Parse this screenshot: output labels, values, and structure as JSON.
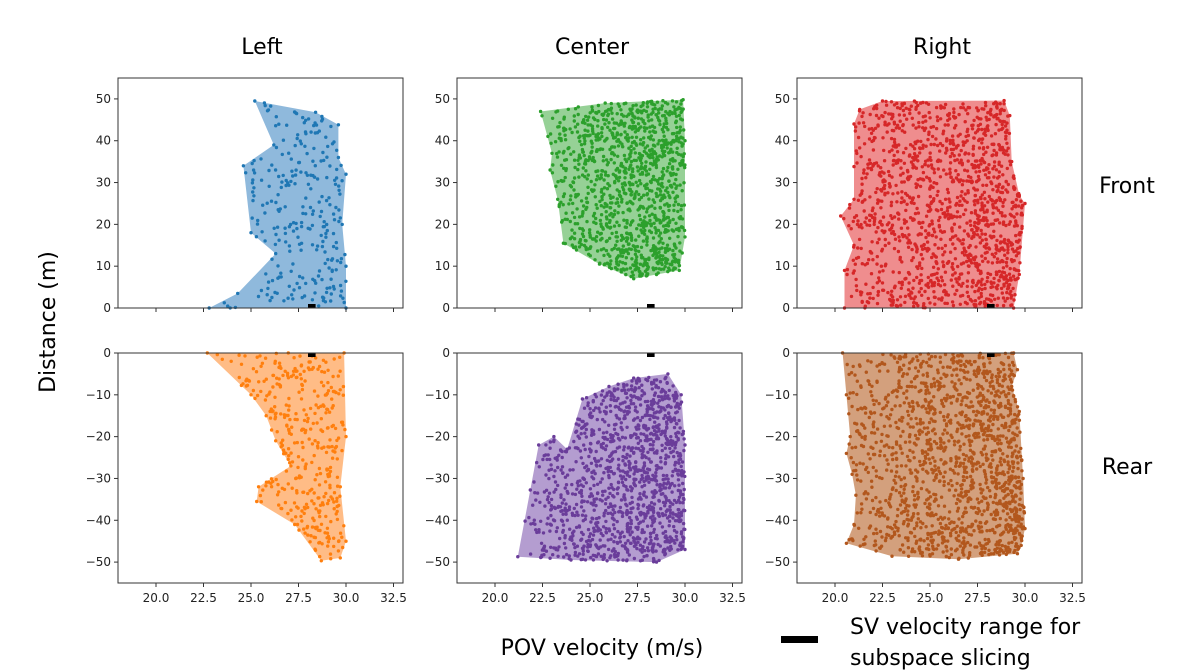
{
  "figure": {
    "ylabel": "Distance (m)",
    "xlabel": "POV velocity (m/s)",
    "legend_label_line1": "SV velocity range for",
    "legend_label_line2": "subspace slicing",
    "legend_color": "#000000"
  },
  "chart_data": {
    "type": "scatter",
    "columns": [
      "Left",
      "Center",
      "Right"
    ],
    "rows": [
      "Front",
      "Rear"
    ],
    "xlim": [
      18.0,
      33.0
    ],
    "xticks": [
      20.0,
      22.5,
      25.0,
      27.5,
      30.0,
      32.5
    ],
    "xtick_labels": [
      "20.0",
      "22.5",
      "25.0",
      "27.5",
      "30.0",
      "32.5"
    ],
    "front_ylim": [
      0,
      55
    ],
    "front_yticks": [
      0,
      10,
      20,
      30,
      40,
      50
    ],
    "front_ytick_labels": [
      "0",
      "10",
      "20",
      "30",
      "40",
      "50"
    ],
    "rear_ylim": [
      -55,
      0
    ],
    "rear_yticks": [
      0,
      -10,
      -20,
      -30,
      -40,
      -50
    ],
    "rear_ytick_labels": [
      "0",
      "−10",
      "−20",
      "−30",
      "−40",
      "−50"
    ],
    "sv_velocity_range": [
      28.0,
      28.4
    ],
    "panels": [
      {
        "id": "front-left",
        "row": "Front",
        "column": "Left",
        "color": "#1f77b4",
        "fill": "#8fb9dc",
        "n_points": 260,
        "seed": 11,
        "hull": [
          [
            22.8,
            0
          ],
          [
            24.3,
            3.5
          ],
          [
            26.3,
            13
          ],
          [
            25.0,
            18
          ],
          [
            24.6,
            34
          ],
          [
            26.2,
            39
          ],
          [
            25.2,
            49.5
          ],
          [
            28.4,
            46.8
          ],
          [
            29.6,
            43.8
          ],
          [
            29.6,
            36
          ],
          [
            30.0,
            32
          ],
          [
            29.8,
            20
          ],
          [
            30.0,
            10
          ],
          [
            30.0,
            0
          ]
        ]
      },
      {
        "id": "front-center",
        "row": "Front",
        "column": "Center",
        "color": "#2ca02c",
        "fill": "#96d196",
        "n_points": 1200,
        "seed": 23,
        "hull": [
          [
            23.6,
            15.5
          ],
          [
            23.3,
            26
          ],
          [
            22.9,
            33
          ],
          [
            23.0,
            37
          ],
          [
            22.4,
            47
          ],
          [
            25.8,
            49
          ],
          [
            29.9,
            49.8
          ],
          [
            30.0,
            40
          ],
          [
            30.0,
            17
          ],
          [
            29.7,
            9
          ],
          [
            28.5,
            8
          ],
          [
            27.3,
            7
          ],
          [
            25.5,
            10.5
          ]
        ]
      },
      {
        "id": "front-right",
        "row": "Front",
        "column": "Right",
        "color": "#d62728",
        "fill": "#ef8d8e",
        "n_points": 1400,
        "seed": 37,
        "hull": [
          [
            20.5,
            0
          ],
          [
            20.5,
            9
          ],
          [
            21.0,
            15
          ],
          [
            20.3,
            22
          ],
          [
            21.0,
            26
          ],
          [
            21.0,
            44
          ],
          [
            21.3,
            47.5
          ],
          [
            22.5,
            49.5
          ],
          [
            28.9,
            49.6
          ],
          [
            29.2,
            46
          ],
          [
            29.3,
            35
          ],
          [
            29.7,
            27
          ],
          [
            30.0,
            25
          ],
          [
            29.7,
            8
          ],
          [
            29.4,
            0
          ]
        ]
      },
      {
        "id": "rear-left",
        "row": "Rear",
        "column": "Left",
        "color": "#ff7f0e",
        "fill": "#ffbc86",
        "n_points": 380,
        "seed": 53,
        "hull": [
          [
            22.7,
            0
          ],
          [
            29.9,
            0
          ],
          [
            30.0,
            -20
          ],
          [
            29.7,
            -32
          ],
          [
            30.0,
            -45
          ],
          [
            29.7,
            -49
          ],
          [
            28.7,
            -49.7
          ],
          [
            27.3,
            -41
          ],
          [
            25.3,
            -35.5
          ],
          [
            25.4,
            -32
          ],
          [
            27.1,
            -27
          ],
          [
            26.3,
            -21
          ],
          [
            25.8,
            -15
          ],
          [
            25.0,
            -10
          ]
        ]
      },
      {
        "id": "rear-center",
        "row": "Rear",
        "column": "Center",
        "color": "#6a3d9a",
        "fill": "#b49dd0",
        "n_points": 1300,
        "seed": 71,
        "hull": [
          [
            21.2,
            -48.7
          ],
          [
            22.3,
            -22
          ],
          [
            23.1,
            -20
          ],
          [
            23.8,
            -23
          ],
          [
            24.6,
            -11
          ],
          [
            26.0,
            -8
          ],
          [
            27.3,
            -6
          ],
          [
            29.1,
            -5
          ],
          [
            29.8,
            -10
          ],
          [
            30.0,
            -22
          ],
          [
            30.0,
            -47
          ],
          [
            28.5,
            -50
          ],
          [
            24.0,
            -49.5
          ]
        ]
      },
      {
        "id": "rear-right",
        "row": "Rear",
        "column": "Right",
        "color": "#b2571d",
        "fill": "#d3a07d",
        "n_points": 1500,
        "seed": 97,
        "hull": [
          [
            20.4,
            0
          ],
          [
            29.4,
            0
          ],
          [
            29.6,
            -4
          ],
          [
            29.3,
            -8
          ],
          [
            29.7,
            -14
          ],
          [
            29.9,
            -30
          ],
          [
            30.0,
            -42
          ],
          [
            29.8,
            -46
          ],
          [
            29.6,
            -48
          ],
          [
            26.5,
            -49.3
          ],
          [
            23.0,
            -48.6
          ],
          [
            20.6,
            -45.5
          ],
          [
            21.0,
            -41
          ],
          [
            21.1,
            -34
          ],
          [
            20.9,
            -29
          ],
          [
            20.6,
            -24
          ],
          [
            20.8,
            -20
          ],
          [
            20.6,
            -10
          ]
        ]
      }
    ]
  }
}
